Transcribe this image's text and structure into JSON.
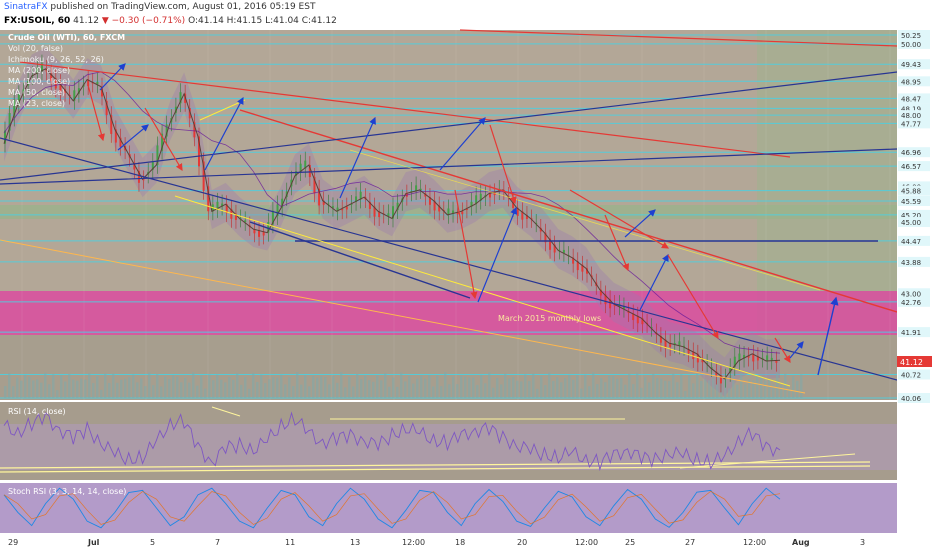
{
  "header": {
    "author": "SinatraFX",
    "published": "published on TradingView.com, August 01, 2016 05:19 EST",
    "symbol": "FX:USOIL, 60",
    "last": "41.12",
    "change": "▼ −0.30 (−0.71%)",
    "ohlc": "O:41.14 H:41.15 L:41.04 C:41.12"
  },
  "legend": [
    "Crude Oil (WTI), 60, FXCM",
    "Vol (20, false)",
    "Ichimoku (9, 26, 52, 26)",
    "MA (200, close)",
    "MA (100, close)",
    "MA (50, close)",
    "MA (23, close)"
  ],
  "annotation": "March 2015 monthly lows",
  "colors": {
    "background": "#b0a595",
    "cyan_level": "#4dd0e1",
    "trend_red": "#e53935",
    "trend_blue": "#283593",
    "yellow": "#ffeb3b",
    "magenta_zone": "#e040a0"
  },
  "chart_data": [
    {
      "type": "line",
      "title": "Crude Oil (WTI), 60, FXCM",
      "ylim": [
        40.06,
        50.25
      ],
      "x_ticks": [
        "29",
        "Jul",
        "5",
        "7",
        "11",
        "13",
        "12:00",
        "18",
        "20",
        "12:00",
        "25",
        "27",
        "12:00",
        "Aug",
        "3"
      ],
      "y_ticks": [
        50.25,
        50.0,
        49.43,
        48.95,
        48.47,
        48.19,
        48.0,
        47.77,
        46.96,
        46.57,
        46.0,
        45.88,
        45.59,
        45.2,
        45.0,
        44.47,
        43.88,
        43.0,
        42.76,
        41.91,
        41.12,
        40.72,
        40.06
      ],
      "last_price": 41.12,
      "close": [
        47.2,
        48.3,
        49.1,
        49.3,
        48.9,
        48.4,
        49.0,
        48.8,
        47.6,
        46.9,
        46.2,
        46.6,
        47.8,
        48.6,
        47.4,
        45.3,
        45.5,
        45.1,
        44.8,
        44.7,
        45.4,
        46.3,
        46.6,
        45.6,
        45.3,
        45.5,
        45.7,
        45.3,
        45.1,
        45.8,
        45.9,
        45.6,
        45.2,
        45.3,
        45.5,
        45.8,
        45.9,
        45.4,
        45.1,
        44.7,
        44.2,
        44.0,
        43.7,
        43.1,
        42.7,
        42.5,
        42.3,
        41.9,
        41.6,
        41.5,
        41.3,
        40.9,
        40.6,
        41.1,
        41.3,
        41.1,
        41.12
      ],
      "levels": [
        50.25,
        50.0,
        49.43,
        48.95,
        48.47,
        48.19,
        48.0,
        47.77,
        46.96,
        46.57,
        45.88,
        45.59,
        45.2,
        44.47,
        43.88,
        42.76,
        41.91,
        40.72,
        40.06
      ]
    },
    {
      "type": "line",
      "title": "RSI (14, close)",
      "ylim": [
        15,
        75
      ],
      "y_ticks": [
        "60.0000",
        "40.0000",
        "20.0000"
      ],
      "values": [
        58,
        52,
        60,
        65,
        55,
        48,
        55,
        44,
        35,
        30,
        32,
        45,
        60,
        62,
        40,
        28,
        40,
        42,
        38,
        46,
        58,
        64,
        52,
        44,
        48,
        50,
        46,
        42,
        50,
        56,
        52,
        46,
        44,
        50,
        54,
        56,
        48,
        42,
        38,
        34,
        32,
        36,
        30,
        28,
        34,
        38,
        32,
        30,
        36,
        34,
        30,
        28,
        32,
        46,
        52,
        40,
        38
      ]
    },
    {
      "type": "line",
      "title": "Stoch RSI (3, 3, 14, 14, close)",
      "ylim": [
        0,
        100
      ],
      "y_ticks": [
        "80.0000",
        "40.0000",
        "0.0000"
      ],
      "values": [
        80,
        40,
        10,
        60,
        95,
        70,
        20,
        5,
        40,
        85,
        90,
        50,
        10,
        30,
        80,
        95,
        60,
        20,
        5,
        50,
        90,
        80,
        30,
        10,
        60,
        95,
        70,
        25,
        5,
        45,
        90,
        85,
        40,
        10,
        60,
        92,
        65,
        20,
        8,
        50,
        88,
        75,
        30,
        10,
        55,
        92,
        70,
        25,
        6,
        40,
        86,
        90,
        50,
        12,
        60,
        95,
        70
      ]
    }
  ]
}
